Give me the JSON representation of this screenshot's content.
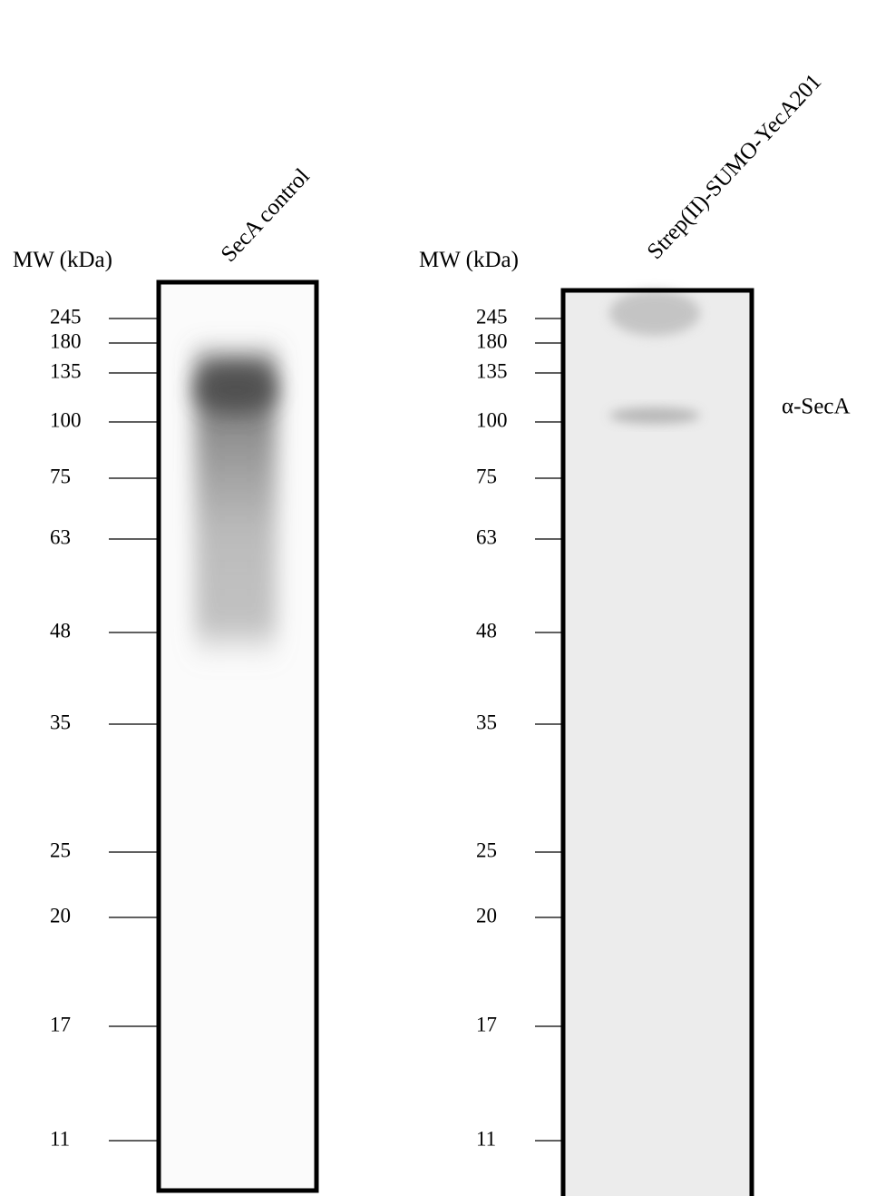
{
  "panels": [
    {
      "mw_label": "MW (kDa)",
      "lane_label": "SecA control",
      "markers": [
        "245",
        "180",
        "135",
        "100",
        "75",
        "63",
        "48",
        "35",
        "25",
        "20",
        "17",
        "11"
      ]
    },
    {
      "mw_label": "MW (kDa)",
      "lane_label": "Strep(II)-SUMO-YecA201",
      "markers": [
        "245",
        "180",
        "135",
        "100",
        "75",
        "63",
        "48",
        "35",
        "25",
        "20",
        "17",
        "11"
      ]
    }
  ],
  "annotation": "α-SecA"
}
